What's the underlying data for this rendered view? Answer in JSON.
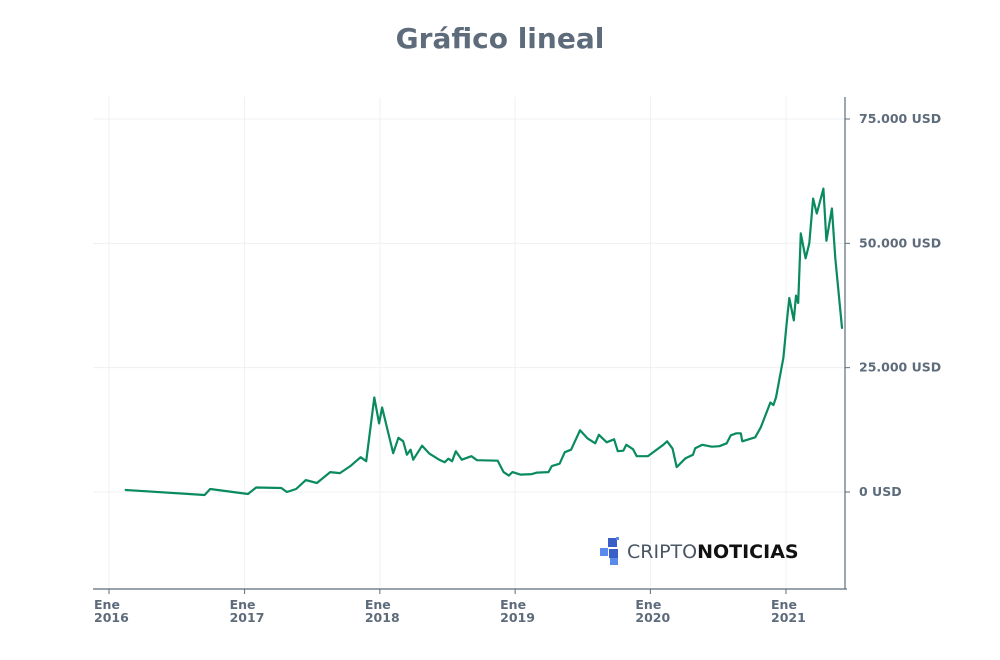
{
  "chart_data": {
    "type": "line",
    "title": "Gráfico lineal",
    "xlabel": "",
    "ylabel": "",
    "ylim": [
      -18000,
      75000
    ],
    "yticks": [
      {
        "value": 0,
        "label": "0 USD"
      },
      {
        "value": 25000,
        "label": "25.000 USD"
      },
      {
        "value": 50000,
        "label": "50.000 USD"
      },
      {
        "value": 75000,
        "label": "75.000 USD"
      }
    ],
    "xlim": [
      "2015-12-01",
      "2021-05-15"
    ],
    "xticks": [
      {
        "date": "2016-01-01",
        "line1": "Ene",
        "line2": "2016"
      },
      {
        "date": "2017-01-01",
        "line1": "Ene",
        "line2": "2017"
      },
      {
        "date": "2018-01-01",
        "line1": "Ene",
        "line2": "2018"
      },
      {
        "date": "2019-01-01",
        "line1": "Ene",
        "line2": "2019"
      },
      {
        "date": "2020-01-01",
        "line1": "Ene",
        "line2": "2020"
      },
      {
        "date": "2021-01-01",
        "line1": "Ene",
        "line2": "2021"
      }
    ],
    "grid": true,
    "legend": "none",
    "y_axis_side": "right",
    "colors": {
      "line": "#0a8a5f",
      "axis": "#5d6b7b",
      "grid": "#eef0f3"
    },
    "series": [
      {
        "points": [
          [
            "2016-02-15",
            400
          ],
          [
            "2016-09-15",
            -600
          ],
          [
            "2016-09-30",
            600
          ],
          [
            "2017-01-10",
            -400
          ],
          [
            "2017-02-01",
            900
          ],
          [
            "2017-04-10",
            800
          ],
          [
            "2017-04-25",
            0
          ],
          [
            "2017-05-20",
            600
          ],
          [
            "2017-06-15",
            2400
          ],
          [
            "2017-07-15",
            1800
          ],
          [
            "2017-08-20",
            4000
          ],
          [
            "2017-09-15",
            3800
          ],
          [
            "2017-10-15",
            5300
          ],
          [
            "2017-11-10",
            7000
          ],
          [
            "2017-11-25",
            6200
          ],
          [
            "2017-12-17",
            19000
          ],
          [
            "2017-12-30",
            13800
          ],
          [
            "2018-01-07",
            17000
          ],
          [
            "2018-02-06",
            7800
          ],
          [
            "2018-02-20",
            10900
          ],
          [
            "2018-03-05",
            10200
          ],
          [
            "2018-03-15",
            7500
          ],
          [
            "2018-03-25",
            8500
          ],
          [
            "2018-04-01",
            6500
          ],
          [
            "2018-04-25",
            9300
          ],
          [
            "2018-05-15",
            7700
          ],
          [
            "2018-06-10",
            6500
          ],
          [
            "2018-06-25",
            6000
          ],
          [
            "2018-07-05",
            6700
          ],
          [
            "2018-07-15",
            6200
          ],
          [
            "2018-07-25",
            8200
          ],
          [
            "2018-08-10",
            6500
          ],
          [
            "2018-09-05",
            7200
          ],
          [
            "2018-09-20",
            6400
          ],
          [
            "2018-11-15",
            6300
          ],
          [
            "2018-12-01",
            4000
          ],
          [
            "2018-12-15",
            3300
          ],
          [
            "2018-12-25",
            4000
          ],
          [
            "2019-01-15",
            3500
          ],
          [
            "2019-02-15",
            3600
          ],
          [
            "2019-03-01",
            3900
          ],
          [
            "2019-04-01",
            4000
          ],
          [
            "2019-04-10",
            5200
          ],
          [
            "2019-05-01",
            5700
          ],
          [
            "2019-05-15",
            8000
          ],
          [
            "2019-06-01",
            8500
          ],
          [
            "2019-06-25",
            12400
          ],
          [
            "2019-07-15",
            10800
          ],
          [
            "2019-08-05",
            9800
          ],
          [
            "2019-08-15",
            11500
          ],
          [
            "2019-09-05",
            10000
          ],
          [
            "2019-09-25",
            10600
          ],
          [
            "2019-10-05",
            8200
          ],
          [
            "2019-10-20",
            8300
          ],
          [
            "2019-10-28",
            9500
          ],
          [
            "2019-11-15",
            8600
          ],
          [
            "2019-11-25",
            7200
          ],
          [
            "2019-12-25",
            7200
          ],
          [
            "2020-01-25",
            8900
          ],
          [
            "2020-02-05",
            9500
          ],
          [
            "2020-02-15",
            10200
          ],
          [
            "2020-03-01",
            8700
          ],
          [
            "2020-03-12",
            5000
          ],
          [
            "2020-04-05",
            6800
          ],
          [
            "2020-04-25",
            7500
          ],
          [
            "2020-05-01",
            8800
          ],
          [
            "2020-05-20",
            9500
          ],
          [
            "2020-06-15",
            9100
          ],
          [
            "2020-07-05",
            9200
          ],
          [
            "2020-07-25",
            9800
          ],
          [
            "2020-08-05",
            11400
          ],
          [
            "2020-08-20",
            11800
          ],
          [
            "2020-09-01",
            11800
          ],
          [
            "2020-09-05",
            10200
          ],
          [
            "2020-10-10",
            11000
          ],
          [
            "2020-10-25",
            13000
          ],
          [
            "2020-11-20",
            18000
          ],
          [
            "2020-11-28",
            17500
          ],
          [
            "2020-12-05",
            19000
          ],
          [
            "2020-12-25",
            27000
          ],
          [
            "2021-01-03",
            34000
          ],
          [
            "2021-01-10",
            39000
          ],
          [
            "2021-01-22",
            34500
          ],
          [
            "2021-01-28",
            39500
          ],
          [
            "2021-02-03",
            38000
          ],
          [
            "2021-02-10",
            52000
          ],
          [
            "2021-02-23",
            47000
          ],
          [
            "2021-03-05",
            50000
          ],
          [
            "2021-03-15",
            59000
          ],
          [
            "2021-03-25",
            56000
          ],
          [
            "2021-04-12",
            61000
          ],
          [
            "2021-04-20",
            50500
          ],
          [
            "2021-05-05",
            57000
          ],
          [
            "2021-05-14",
            47000
          ],
          [
            "2021-06-01",
            33000
          ]
        ]
      }
    ]
  },
  "logo": {
    "part1": "CRIPTO",
    "part2": "NOTICIAS",
    "icon": "cube-logo-icon",
    "colors": {
      "dark": "#3a5fc8",
      "light": "#5a8aea"
    }
  }
}
